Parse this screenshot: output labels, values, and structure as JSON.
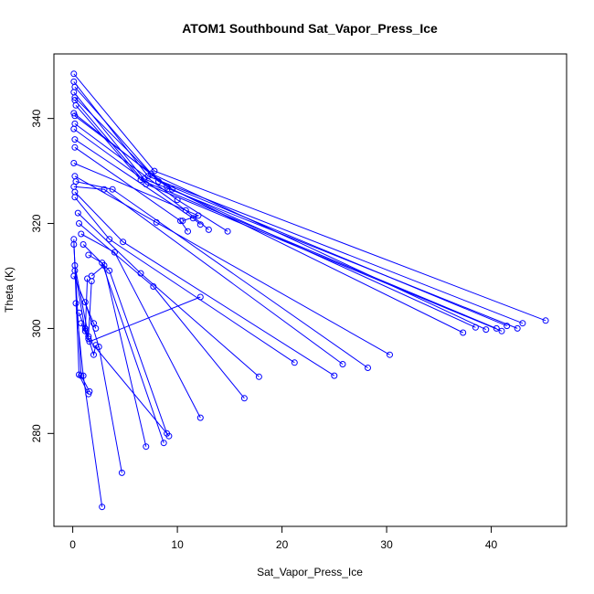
{
  "chart_data": {
    "type": "line",
    "title": "ATOM1 Southbound Sat_Vapor_Press_Ice",
    "xlabel": "Sat_Vapor_Press_Ice",
    "ylabel": "Theta (K)",
    "xlim": [
      -1.8,
      47.2
    ],
    "ylim": [
      262.3,
      352.3
    ],
    "xticks": [
      0,
      10,
      20,
      30,
      40
    ],
    "yticks": [
      280,
      300,
      320,
      340
    ],
    "grid": false,
    "line_color": "#0000ff",
    "marker": "open-circle",
    "series": [
      {
        "x": [
          0.2,
          7.5,
          39.5
        ],
        "y": [
          346.0,
          329.5,
          299.8
        ]
      },
      {
        "x": [
          0.1,
          7.8,
          45.2
        ],
        "y": [
          348.5,
          330.0,
          301.5
        ]
      },
      {
        "x": [
          0.1,
          7.2,
          43.0
        ],
        "y": [
          347.0,
          329.0,
          301.0
        ]
      },
      {
        "x": [
          0.1,
          6.8,
          42.5
        ],
        "y": [
          345.0,
          328.5,
          300.0
        ]
      },
      {
        "x": [
          0.2,
          8.2,
          41.5
        ],
        "y": [
          344.0,
          328.0,
          300.5
        ]
      },
      {
        "x": [
          0.2,
          7.0,
          41.0
        ],
        "y": [
          343.5,
          327.5,
          299.5
        ]
      },
      {
        "x": [
          0.3,
          6.5,
          40.5
        ],
        "y": [
          342.5,
          328.3,
          300.0
        ]
      },
      {
        "x": [
          0.1,
          9.0,
          37.3
        ],
        "y": [
          341.0,
          327.0,
          299.2
        ]
      },
      {
        "x": [
          0.2,
          9.5,
          38.5
        ],
        "y": [
          340.5,
          326.5,
          300.2
        ]
      },
      {
        "x": [
          0.2,
          10.0,
          14.8
        ],
        "y": [
          339.0,
          324.5,
          318.5
        ]
      },
      {
        "x": [
          0.1,
          10.8,
          13.0
        ],
        "y": [
          338.0,
          322.5,
          318.8
        ]
      },
      {
        "x": [
          0.2,
          11.5,
          12.2
        ],
        "y": [
          336.0,
          321.0,
          319.8
        ]
      },
      {
        "x": [
          0.2,
          10.3,
          11.0
        ],
        "y": [
          334.5,
          320.5,
          318.5
        ]
      },
      {
        "x": [
          0.1,
          12.0,
          10.5
        ],
        "y": [
          331.5,
          321.5,
          320.5
        ]
      },
      {
        "x": [
          0.2,
          8.0,
          30.3
        ],
        "y": [
          329.0,
          320.2,
          295.0
        ]
      },
      {
        "x": [
          0.3,
          3.8,
          28.2
        ],
        "y": [
          328.0,
          326.5,
          292.5
        ]
      },
      {
        "x": [
          0.1,
          3.0,
          25.8
        ],
        "y": [
          327.0,
          326.5,
          293.2
        ]
      },
      {
        "x": [
          0.2,
          4.8,
          25.0
        ],
        "y": [
          326.0,
          316.5,
          291.0
        ]
      },
      {
        "x": [
          0.2,
          3.5,
          21.2
        ],
        "y": [
          325.0,
          317.0,
          293.5
        ]
      },
      {
        "x": [
          0.5,
          6.5,
          17.8
        ],
        "y": [
          322.0,
          310.5,
          290.8
        ]
      },
      {
        "x": [
          0.6,
          7.7,
          16.4
        ],
        "y": [
          320.0,
          308.0,
          286.7
        ]
      },
      {
        "x": [
          0.8,
          4.0,
          12.2
        ],
        "y": [
          318.0,
          314.5,
          283.0
        ]
      },
      {
        "x": [
          1.0,
          3.5,
          9.0
        ],
        "y": [
          316.0,
          311.0,
          280.0
        ]
      },
      {
        "x": [
          1.5,
          2.8,
          8.7
        ],
        "y": [
          314.0,
          312.5,
          278.2
        ]
      },
      {
        "x": [
          1.8,
          3.0,
          7.0
        ],
        "y": [
          310.0,
          312.0,
          277.5
        ]
      },
      {
        "x": [
          1.2,
          2.5,
          4.7
        ],
        "y": [
          305.0,
          296.5,
          272.5
        ]
      },
      {
        "x": [
          0.3,
          1.0,
          2.8
        ],
        "y": [
          304.8,
          291.0,
          266.0
        ]
      },
      {
        "x": [
          0.6,
          1.5,
          9.2
        ],
        "y": [
          303.0,
          298.0,
          279.5
        ]
      },
      {
        "x": [
          0.8,
          1.6,
          12.2
        ],
        "y": [
          301.0,
          297.5,
          306.0
        ]
      },
      {
        "x": [
          1.2,
          2.0,
          2.2
        ],
        "y": [
          300.0,
          295.0,
          296.8
        ]
      },
      {
        "x": [
          0.1,
          0.6,
          1.5
        ],
        "y": [
          317.0,
          291.2,
          287.5
        ]
      },
      {
        "x": [
          0.1,
          0.8,
          1.6
        ],
        "y": [
          316.0,
          291.0,
          288.0
        ]
      },
      {
        "x": [
          0.2,
          1.5,
          1.8
        ],
        "y": [
          312.0,
          298.5,
          309.0
        ]
      },
      {
        "x": [
          0.2,
          1.2,
          1.4
        ],
        "y": [
          311.0,
          299.5,
          309.5
        ]
      },
      {
        "x": [
          0.1,
          2.2,
          2.0
        ],
        "y": [
          310.0,
          300.0,
          301.0
        ]
      }
    ]
  }
}
